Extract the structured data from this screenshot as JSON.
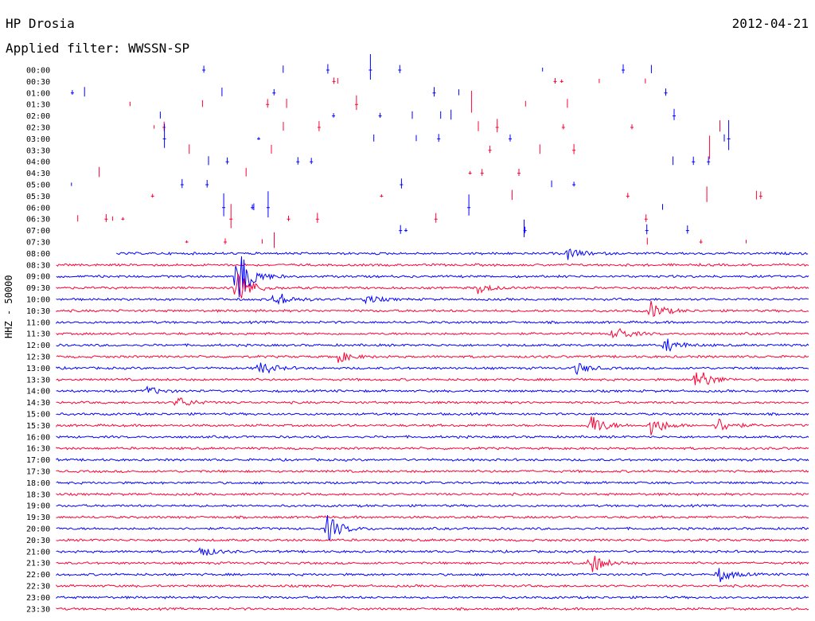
{
  "header": {
    "station": "HP Drosia",
    "date": "2012-04-21",
    "filter_label": "Applied filter: WWSSN-SP",
    "channel_label": "HHZ - 50000"
  },
  "colors": {
    "even_trace": "#0000ff",
    "odd_trace": "#ff0033"
  },
  "chart_data": {
    "type": "line",
    "title": "HP Drosia",
    "subtitle": "Applied filter: WWSSN-SP",
    "ylabel": "HHZ - 50000",
    "row_labels": [
      "00:00",
      "00:30",
      "01:00",
      "01:30",
      "02:00",
      "02:30",
      "03:00",
      "03:30",
      "04:00",
      "04:30",
      "05:00",
      "05:30",
      "06:00",
      "06:30",
      "07:00",
      "07:30",
      "08:00",
      "08:30",
      "09:00",
      "09:30",
      "10:00",
      "10:30",
      "11:00",
      "11:30",
      "12:00",
      "12:30",
      "13:00",
      "13:30",
      "14:00",
      "14:30",
      "15:00",
      "15:30",
      "16:00",
      "16:30",
      "17:00",
      "17:30",
      "18:00",
      "18:30",
      "19:00",
      "19:30",
      "20:00",
      "20:30",
      "21:00",
      "21:30",
      "22:00",
      "22:30",
      "23:00",
      "23:30"
    ],
    "data_start_row": 16,
    "data_start_fraction": 0.08,
    "events": [
      {
        "row": 16,
        "pos": 0.68,
        "amp": 8
      },
      {
        "row": 18,
        "pos": 0.24,
        "amp": 40
      },
      {
        "row": 19,
        "pos": 0.24,
        "amp": 25
      },
      {
        "row": 19,
        "pos": 0.56,
        "amp": 7
      },
      {
        "row": 20,
        "pos": 0.29,
        "amp": 12
      },
      {
        "row": 20,
        "pos": 0.41,
        "amp": 6
      },
      {
        "row": 21,
        "pos": 0.79,
        "amp": 12
      },
      {
        "row": 23,
        "pos": 0.74,
        "amp": 12
      },
      {
        "row": 24,
        "pos": 0.81,
        "amp": 10
      },
      {
        "row": 25,
        "pos": 0.37,
        "amp": 10
      },
      {
        "row": 26,
        "pos": 0.27,
        "amp": 10
      },
      {
        "row": 26,
        "pos": 0.69,
        "amp": 8
      },
      {
        "row": 27,
        "pos": 0.85,
        "amp": 18
      },
      {
        "row": 28,
        "pos": 0.12,
        "amp": 6
      },
      {
        "row": 29,
        "pos": 0.16,
        "amp": 8
      },
      {
        "row": 31,
        "pos": 0.71,
        "amp": 16
      },
      {
        "row": 31,
        "pos": 0.79,
        "amp": 14
      },
      {
        "row": 31,
        "pos": 0.88,
        "amp": 10
      },
      {
        "row": 40,
        "pos": 0.36,
        "amp": 18
      },
      {
        "row": 42,
        "pos": 0.19,
        "amp": 8
      },
      {
        "row": 43,
        "pos": 0.71,
        "amp": 14
      },
      {
        "row": 44,
        "pos": 0.88,
        "amp": 10
      }
    ]
  }
}
